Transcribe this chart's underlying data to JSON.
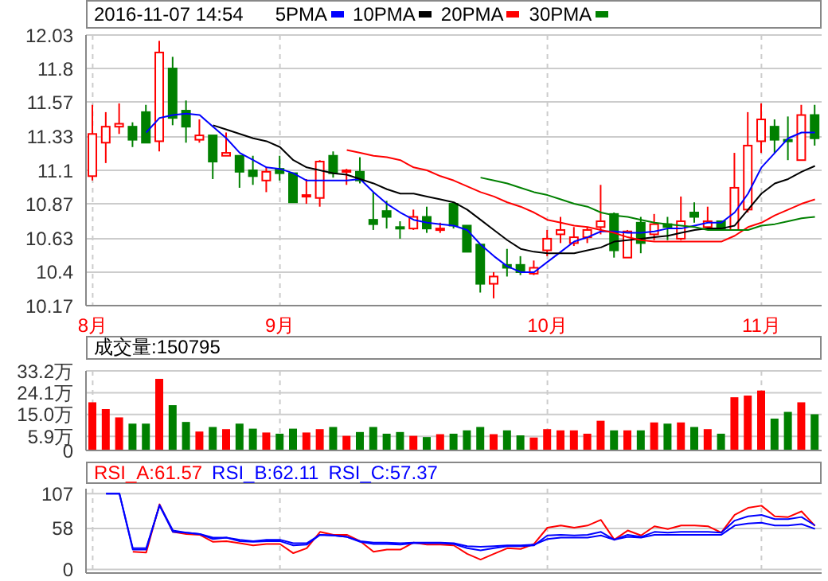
{
  "chart_data": [
    {
      "type": "candlestick",
      "title": "2016-11-07 14:54",
      "categories": [
        "8月",
        null,
        null,
        null,
        null,
        null,
        null,
        null,
        null,
        null,
        null,
        null,
        null,
        null,
        "9月",
        null,
        null,
        null,
        null,
        null,
        null,
        null,
        null,
        null,
        null,
        null,
        null,
        null,
        null,
        null,
        null,
        null,
        null,
        null,
        "10月",
        null,
        null,
        null,
        null,
        null,
        null,
        null,
        null,
        null,
        null,
        null,
        null,
        null,
        null,
        null,
        "11月",
        null,
        null,
        null,
        null
      ],
      "ohlc": [
        [
          11.06,
          11.55,
          11.03,
          11.35
        ],
        [
          11.29,
          11.5,
          11.15,
          11.4
        ],
        [
          11.4,
          11.56,
          11.35,
          11.42
        ],
        [
          11.4,
          11.43,
          11.26,
          11.31
        ],
        [
          11.5,
          11.55,
          11.29,
          11.29
        ],
        [
          11.3,
          11.99,
          11.23,
          11.91
        ],
        [
          11.8,
          11.88,
          11.41,
          11.46
        ],
        [
          11.51,
          11.58,
          11.29,
          11.4
        ],
        [
          11.31,
          11.45,
          11.29,
          11.34
        ],
        [
          11.34,
          11.34,
          11.04,
          11.16
        ],
        [
          11.2,
          11.36,
          11.2,
          11.22
        ],
        [
          11.2,
          11.2,
          10.98,
          11.09
        ],
        [
          11.1,
          11.2,
          11.0,
          11.06
        ],
        [
          11.03,
          11.12,
          10.95,
          11.09
        ],
        [
          11.11,
          11.2,
          11.03,
          11.08
        ],
        [
          11.08,
          11.08,
          10.88,
          10.88
        ],
        [
          10.92,
          11.04,
          10.87,
          10.93
        ],
        [
          10.91,
          11.17,
          10.85,
          11.16
        ],
        [
          11.2,
          11.23,
          11.05,
          11.08
        ],
        [
          11.09,
          11.11,
          11.0,
          11.1
        ],
        [
          11.09,
          11.19,
          11.01,
          11.03
        ],
        [
          10.76,
          10.95,
          10.69,
          10.73
        ],
        [
          10.82,
          10.89,
          10.7,
          10.78
        ],
        [
          10.71,
          10.75,
          10.63,
          10.7
        ],
        [
          10.7,
          10.83,
          10.69,
          10.78
        ],
        [
          10.78,
          10.85,
          10.67,
          10.7
        ],
        [
          10.7,
          10.74,
          10.67,
          10.7
        ],
        [
          10.87,
          10.87,
          10.7,
          10.72
        ],
        [
          10.72,
          10.72,
          10.54,
          10.54
        ],
        [
          10.59,
          10.59,
          10.26,
          10.32
        ],
        [
          10.32,
          10.4,
          10.22,
          10.37
        ],
        [
          10.45,
          10.56,
          10.37,
          10.43
        ],
        [
          10.45,
          10.51,
          10.38,
          10.4
        ],
        [
          10.39,
          10.48,
          10.38,
          10.43
        ],
        [
          10.55,
          10.69,
          10.51,
          10.63
        ],
        [
          10.66,
          10.78,
          10.6,
          10.69
        ],
        [
          10.6,
          10.71,
          10.58,
          10.64
        ],
        [
          10.64,
          10.71,
          10.6,
          10.69
        ],
        [
          10.71,
          11.0,
          10.66,
          10.75
        ],
        [
          10.8,
          10.81,
          10.5,
          10.55
        ],
        [
          10.5,
          10.69,
          10.5,
          10.68
        ],
        [
          10.74,
          10.78,
          10.53,
          10.6
        ],
        [
          10.66,
          10.8,
          10.62,
          10.73
        ],
        [
          10.73,
          10.78,
          10.62,
          10.71
        ],
        [
          10.63,
          10.92,
          10.62,
          10.75
        ],
        [
          10.81,
          10.88,
          10.74,
          10.78
        ],
        [
          10.71,
          10.85,
          10.69,
          10.75
        ],
        [
          10.75,
          10.75,
          10.69,
          10.7
        ],
        [
          10.69,
          11.22,
          10.69,
          10.98
        ],
        [
          10.83,
          11.5,
          10.81,
          11.27
        ],
        [
          11.3,
          11.56,
          11.22,
          11.45
        ],
        [
          11.4,
          11.45,
          11.22,
          11.31
        ],
        [
          11.31,
          11.47,
          11.17,
          11.3
        ],
        [
          11.17,
          11.55,
          11.17,
          11.48
        ],
        [
          11.48,
          11.55,
          11.27,
          11.32
        ]
      ],
      "colors": [
        "#ff0000",
        "#ff0000",
        "#ff0000",
        "#008000",
        "#008000",
        "#ff0000",
        "#008000",
        "#008000",
        "#ff0000",
        "#008000",
        "#ff0000",
        "#008000",
        "#008000",
        "#ff0000",
        "#008000",
        "#008000",
        "#ff0000",
        "#ff0000",
        "#008000",
        "#ff0000",
        "#008000",
        "#008000",
        "#008000",
        "#008000",
        "#ff0000",
        "#008000",
        "#ff0000",
        "#008000",
        "#008000",
        "#008000",
        "#ff0000",
        "#008000",
        "#008000",
        "#ff0000",
        "#ff0000",
        "#ff0000",
        "#ff0000",
        "#ff0000",
        "#ff0000",
        "#008000",
        "#ff0000",
        "#008000",
        "#ff0000",
        "#008000",
        "#ff0000",
        "#008000",
        "#ff0000",
        "#008000",
        "#ff0000",
        "#ff0000",
        "#ff0000",
        "#008000",
        "#008000",
        "#ff0000",
        "#008000"
      ],
      "series": [
        {
          "name": "5PMA",
          "type": "line",
          "color": "#0000ff",
          "values": [
            null,
            null,
            null,
            null,
            11.36,
            11.46,
            11.48,
            11.49,
            11.48,
            11.4,
            11.32,
            11.22,
            11.17,
            11.12,
            11.11,
            11.08,
            11.03,
            11.03,
            11.03,
            11.03,
            11.04,
            10.95,
            10.87,
            10.81,
            10.76,
            10.74,
            10.73,
            10.72,
            10.69,
            10.59,
            10.51,
            10.44,
            10.4,
            10.4,
            10.47,
            10.54,
            10.61,
            10.64,
            10.68,
            10.68,
            10.67,
            10.67,
            10.68,
            10.7,
            10.7,
            10.72,
            10.74,
            10.74,
            10.81,
            10.94,
            11.12,
            11.22,
            11.32,
            11.36,
            11.36
          ]
        },
        {
          "name": "10PMA",
          "type": "line",
          "color": "#000000",
          "values": [
            null,
            null,
            null,
            null,
            null,
            null,
            null,
            null,
            null,
            11.41,
            11.38,
            11.35,
            11.32,
            11.3,
            11.26,
            11.17,
            11.12,
            11.1,
            11.08,
            11.07,
            11.04,
            11.01,
            10.97,
            10.94,
            10.94,
            10.92,
            10.9,
            10.88,
            10.83,
            10.76,
            10.69,
            10.62,
            10.56,
            10.54,
            10.53,
            10.53,
            10.53,
            10.55,
            10.57,
            10.61,
            10.62,
            10.63,
            10.64,
            10.65,
            10.67,
            10.69,
            10.7,
            10.7,
            10.72,
            10.83,
            10.94,
            11.01,
            11.04,
            11.09,
            11.13
          ]
        },
        {
          "name": "20PMA",
          "type": "line",
          "color": "#ff0000",
          "values": [
            null,
            null,
            null,
            null,
            null,
            null,
            null,
            null,
            null,
            null,
            null,
            null,
            null,
            null,
            null,
            null,
            null,
            null,
            null,
            11.24,
            11.22,
            11.2,
            11.19,
            11.17,
            11.12,
            11.1,
            11.06,
            11.03,
            10.99,
            10.95,
            10.92,
            10.88,
            10.85,
            10.81,
            10.76,
            10.74,
            10.72,
            10.71,
            10.69,
            10.67,
            10.64,
            10.62,
            10.61,
            10.61,
            10.61,
            10.61,
            10.61,
            10.61,
            10.65,
            10.71,
            10.74,
            10.79,
            10.83,
            10.87,
            10.9
          ]
        },
        {
          "name": "30PMA",
          "type": "line",
          "color": "#008000",
          "values": [
            null,
            null,
            null,
            null,
            null,
            null,
            null,
            null,
            null,
            null,
            null,
            null,
            null,
            null,
            null,
            null,
            null,
            null,
            null,
            null,
            null,
            null,
            null,
            null,
            null,
            null,
            null,
            null,
            null,
            11.05,
            11.03,
            11.01,
            10.98,
            10.95,
            10.93,
            10.9,
            10.87,
            10.85,
            10.81,
            10.79,
            10.78,
            10.76,
            10.74,
            10.73,
            10.72,
            10.71,
            10.69,
            10.69,
            10.69,
            10.69,
            10.72,
            10.73,
            10.75,
            10.77,
            10.78
          ]
        }
      ],
      "ylim": [
        10.17,
        12.03
      ],
      "yticks": [
        10.17,
        10.4,
        10.63,
        10.87,
        11.1,
        11.33,
        11.57,
        11.8,
        12.03
      ],
      "grid": true,
      "legend": "top"
    },
    {
      "type": "bar",
      "title": "成交量:150795",
      "categories": [
        null,
        null,
        null,
        null,
        null,
        null,
        null,
        null,
        null,
        null,
        null,
        null,
        null,
        null,
        null,
        null,
        null,
        null,
        null,
        null,
        null,
        null,
        null,
        null,
        null,
        null,
        null,
        null,
        null,
        null,
        null,
        null,
        null,
        null,
        null,
        null,
        null,
        null,
        null,
        null,
        null,
        null,
        null,
        null,
        null,
        null,
        null,
        null,
        null,
        null,
        null,
        null,
        null,
        null,
        null
      ],
      "values": [
        20.1,
        17.3,
        13.8,
        11.2,
        11.2,
        29.9,
        18.9,
        11.9,
        7.9,
        9.8,
        8.9,
        11.2,
        9.1,
        7.5,
        7.0,
        9.1,
        7.5,
        8.9,
        9.8,
        6.1,
        7.7,
        9.8,
        7.0,
        7.7,
        6.1,
        5.6,
        6.8,
        7.0,
        8.4,
        9.8,
        6.8,
        8.4,
        6.3,
        5.4,
        8.9,
        8.4,
        8.4,
        7.0,
        12.4,
        8.4,
        8.4,
        8.4,
        11.7,
        11.2,
        11.7,
        9.8,
        8.9,
        7.0,
        22.2,
        22.9,
        25.0,
        13.3,
        16.1,
        20.1,
        15.1
      ],
      "colors": [
        "#ff0000",
        "#ff0000",
        "#ff0000",
        "#008000",
        "#008000",
        "#ff0000",
        "#008000",
        "#008000",
        "#ff0000",
        "#008000",
        "#ff0000",
        "#008000",
        "#008000",
        "#ff0000",
        "#008000",
        "#008000",
        "#ff0000",
        "#ff0000",
        "#008000",
        "#ff0000",
        "#008000",
        "#008000",
        "#008000",
        "#008000",
        "#ff0000",
        "#008000",
        "#ff0000",
        "#008000",
        "#008000",
        "#008000",
        "#ff0000",
        "#008000",
        "#008000",
        "#ff0000",
        "#ff0000",
        "#ff0000",
        "#ff0000",
        "#ff0000",
        "#ff0000",
        "#008000",
        "#ff0000",
        "#008000",
        "#ff0000",
        "#008000",
        "#ff0000",
        "#008000",
        "#ff0000",
        "#008000",
        "#ff0000",
        "#ff0000",
        "#ff0000",
        "#008000",
        "#008000",
        "#ff0000",
        "#008000"
      ],
      "ylim": [
        0,
        33.2
      ],
      "yticks": [
        0,
        {
          "value": 5.9,
          "label": "5.9万"
        },
        {
          "value": 15.0,
          "label": "15.0万"
        },
        {
          "value": 24.1,
          "label": "24.1万"
        },
        {
          "value": 33.2,
          "label": "33.2万"
        }
      ],
      "grid": true,
      "tick_labels": "y"
    },
    {
      "type": "line",
      "categories": [
        null,
        null,
        null,
        null,
        null,
        null,
        null,
        null,
        null,
        null,
        null,
        null,
        null,
        null,
        null,
        null,
        null,
        null,
        null,
        null,
        null,
        null,
        null,
        null,
        null,
        null,
        null,
        null,
        null,
        null,
        null,
        null,
        null,
        null,
        null,
        null,
        null,
        null,
        null,
        null,
        null,
        null,
        null,
        null,
        null,
        null,
        null,
        null,
        null,
        null,
        null,
        null,
        null,
        null,
        null
      ],
      "series": [
        {
          "name": "RSI_A:61.57",
          "color": "#ff0000",
          "values": [
            null,
            null,
            null,
            25,
            24,
            92,
            53,
            50,
            49,
            39,
            40,
            37,
            34,
            36,
            36,
            23,
            30,
            53,
            49,
            49,
            40,
            25,
            28,
            28,
            38,
            35,
            35,
            34,
            22,
            14,
            22,
            30,
            29,
            36,
            59,
            62,
            59,
            62,
            70,
            42,
            55,
            48,
            61,
            57,
            62,
            62,
            61,
            52,
            77,
            87,
            90,
            75,
            74,
            82,
            61.57
          ]
        },
        {
          "name": "RSI_B:62.11",
          "color": "#0000ff",
          "values": [
            null,
            107,
            107,
            28,
            28,
            91,
            55,
            52,
            50,
            43,
            45,
            40,
            39,
            40,
            40,
            34,
            35,
            49,
            48,
            46,
            39,
            36,
            36,
            35,
            37,
            37,
            37,
            36,
            30,
            27,
            30,
            33,
            33,
            34,
            48,
            49,
            48,
            49,
            53,
            42,
            49,
            46,
            53,
            52,
            53,
            53,
            53,
            52,
            69,
            75,
            77,
            71,
            71,
            74,
            62.11
          ]
        },
        {
          "name": "RSI_C:57.37",
          "color": "#0000ff",
          "values": [
            null,
            107,
            107,
            30,
            30,
            90,
            53,
            52,
            50,
            45,
            45,
            42,
            40,
            42,
            42,
            37,
            37,
            49,
            48,
            46,
            40,
            38,
            38,
            37,
            38,
            38,
            38,
            37,
            33,
            32,
            33,
            34,
            34,
            35,
            43,
            45,
            45,
            45,
            48,
            42,
            46,
            45,
            49,
            49,
            49,
            49,
            49,
            49,
            62,
            65,
            66,
            62,
            62,
            64,
            57.37
          ]
        }
      ],
      "ylim": [
        -5,
        114
      ],
      "yticks": [
        0,
        58,
        107
      ],
      "grid": true,
      "legend": "top",
      "tick_labels": "y"
    }
  ]
}
